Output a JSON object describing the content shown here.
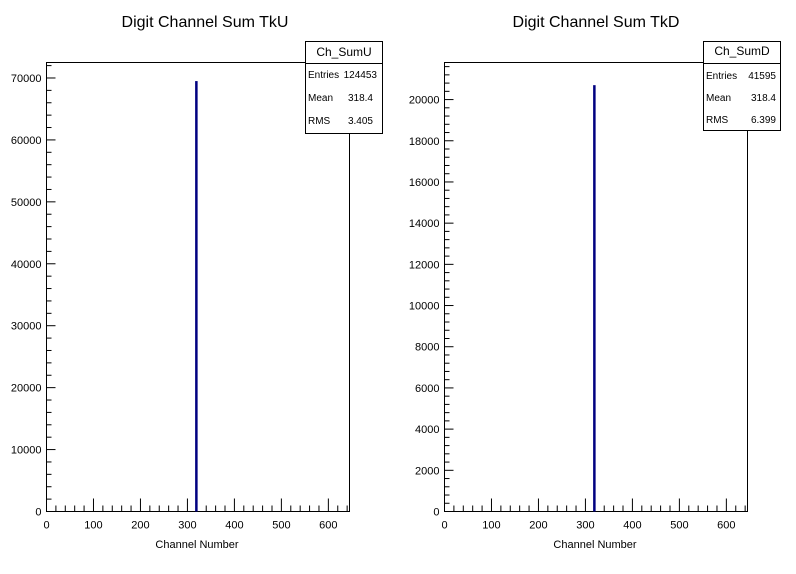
{
  "chart_data": [
    {
      "type": "bar",
      "title": "Digit Channel Sum TkU",
      "xlabel": "Channel Number",
      "ylabel": "",
      "xlim": [
        0,
        645
      ],
      "ylim": [
        0,
        72500
      ],
      "xticks": [
        "0",
        "100",
        "200",
        "300",
        "400",
        "500",
        "600"
      ],
      "yticks": [
        "0",
        "10000",
        "20000",
        "30000",
        "40000",
        "50000",
        "60000",
        "70000"
      ],
      "series": [
        {
          "x": [
            318.5
          ],
          "values": [
            69500
          ]
        }
      ],
      "color": "#000080",
      "stats": {
        "name": "Ch_SumU",
        "rows": [
          {
            "label": "Entries",
            "value": "124453"
          },
          {
            "label": "Mean",
            "value": "318.4"
          },
          {
            "label": "RMS",
            "value": "3.405"
          }
        ]
      }
    },
    {
      "type": "bar",
      "title": "Digit Channel Sum TkD",
      "xlabel": "Channel Number",
      "ylabel": "",
      "xlim": [
        0,
        645
      ],
      "ylim": [
        0,
        21800
      ],
      "xticks": [
        "0",
        "100",
        "200",
        "300",
        "400",
        "500",
        "600"
      ],
      "yticks": [
        "0",
        "2000",
        "4000",
        "6000",
        "8000",
        "10000",
        "12000",
        "14000",
        "16000",
        "18000",
        "20000"
      ],
      "series": [
        {
          "x": [
            318.5
          ],
          "values": [
            20700
          ]
        }
      ],
      "color": "#000080",
      "stats": {
        "name": "Ch_SumD",
        "rows": [
          {
            "label": "Entries",
            "value": "41595"
          },
          {
            "label": "Mean",
            "value": "318.4"
          },
          {
            "label": "RMS",
            "value": "6.399"
          }
        ]
      }
    }
  ]
}
